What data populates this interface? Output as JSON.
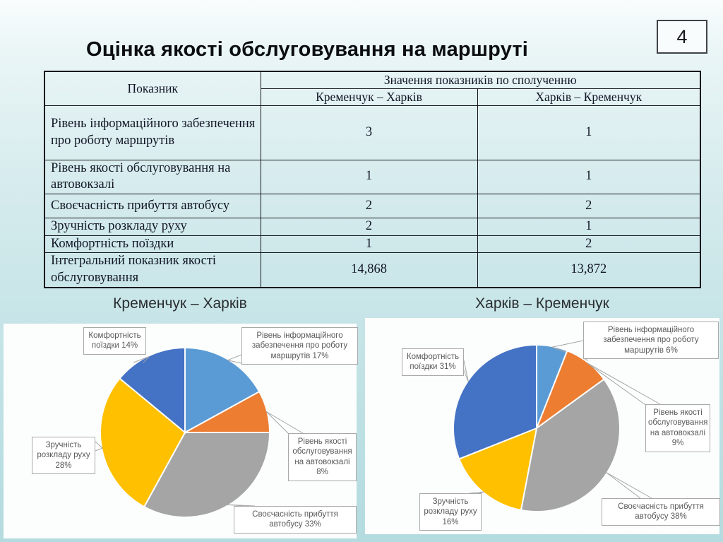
{
  "slide": {
    "page_number": "4",
    "title": "Оцінка якості обслуговування на маршруті"
  },
  "table": {
    "header": {
      "indicator": "Показник",
      "group": "Значення показників по сполученню",
      "route1": "Кременчук – Харків",
      "route2": "Харків – Кременчук"
    },
    "rows": [
      {
        "label": "Рівень інформаційного забезпечення про роботу маршрутів",
        "route1": "3",
        "route2": "1"
      },
      {
        "label": "Рівень якості обслуговування на автовокзалі",
        "route1": "1",
        "route2": "1"
      },
      {
        "label": "Своєчасність прибуття автобусу",
        "route1": "2",
        "route2": "2"
      },
      {
        "label": "Зручність розкладу руху",
        "route1": "2",
        "route2": "1"
      },
      {
        "label": "Комфортність поїздки",
        "route1": "1",
        "route2": "2"
      },
      {
        "label": "Інтегральний показник якості обслуговування",
        "route1": "14,868",
        "route2": "13,872"
      }
    ]
  },
  "chart_data": [
    {
      "type": "pie",
      "title": "Кременчук – Харків",
      "unit": "%",
      "legend": "off",
      "slices": [
        {
          "label": "Рівень інформаційного забезпечення про роботу маршрутів",
          "value": 17,
          "color": "#5B9BD5"
        },
        {
          "label": "Рівень якості обслуговування на автовокзалі",
          "value": 8,
          "color": "#ED7D31"
        },
        {
          "label": "Своєчасність прибуття автобусу",
          "value": 33,
          "color": "#A5A5A5"
        },
        {
          "label": "Зручність розкладу руху",
          "value": 28,
          "color": "#FFC000"
        },
        {
          "label": "Комфортність поїздки",
          "value": 14,
          "color": "#4472C4"
        }
      ]
    },
    {
      "type": "pie",
      "title": "Харків – Кременчук",
      "unit": "%",
      "legend": "off",
      "slices": [
        {
          "label": "Рівень інформаційного забезпечення про роботу маршрутів",
          "value": 6,
          "color": "#5B9BD5"
        },
        {
          "label": "Рівень якості обслуговування на автовокзалі",
          "value": 9,
          "color": "#ED7D31"
        },
        {
          "label": "Своєчасність прибуття автобусу",
          "value": 38,
          "color": "#A5A5A5"
        },
        {
          "label": "Зручність розкладу руху",
          "value": 16,
          "color": "#FFC000"
        },
        {
          "label": "Комфортність поїздки",
          "value": 31,
          "color": "#4472C4"
        }
      ]
    }
  ]
}
